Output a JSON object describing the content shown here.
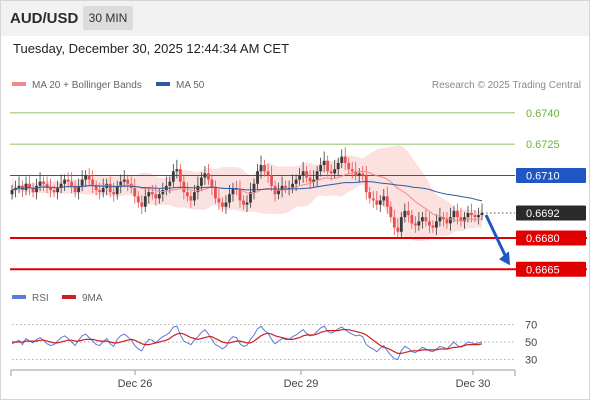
{
  "header": {
    "symbol": "AUD/USD",
    "timeframe": "30 MIN",
    "datetime": "Tuesday, December 30, 2025 12:44:34 AM CET"
  },
  "legend": {
    "ma20": "MA 20 + Bollinger Bands",
    "ma50": "MA 50",
    "credit": "Research © 2025 Trading Central"
  },
  "rsi_legend": {
    "rsi": "RSI",
    "ma": "9MA"
  },
  "colors": {
    "ma20": "#f08a8a",
    "bollinger_fill": "#fcdcdc",
    "ma50": "#2c5aa0",
    "pivot": "#1f56c4",
    "support": "#e00000",
    "resistance": "#6fae3c",
    "candle_up": "#3a3a3a",
    "candle_down": "#e85050",
    "rsi": "#5b7bd5",
    "rsi_ma": "#cc1f1f",
    "current_price_bg": "#2a2a2a",
    "arrow": "#1f56c4"
  },
  "chart_data": [
    {
      "type": "candlestick",
      "title": "",
      "x_tick_labels": [
        "Dec 26",
        "Dec 29",
        "Dec 30"
      ],
      "ylim": [
        0.6657,
        0.675
      ],
      "series": [
        {
          "name": "MA 20 + Bollinger Bands",
          "kind": "line"
        },
        {
          "name": "MA 50",
          "kind": "line"
        }
      ],
      "price_levels": [
        {
          "value": 0.674,
          "label": "0.6740",
          "role": "resistance"
        },
        {
          "value": 0.6725,
          "label": "0.6725",
          "role": "resistance"
        },
        {
          "value": 0.671,
          "label": "0.6710",
          "role": "pivot"
        },
        {
          "value": 0.6692,
          "label": "0.6692",
          "role": "current"
        },
        {
          "value": 0.668,
          "label": "0.6680",
          "role": "support"
        },
        {
          "value": 0.6665,
          "label": "0.6665",
          "role": "support"
        }
      ],
      "closes": [
        0.6703,
        0.6704,
        0.6705,
        0.6703,
        0.6706,
        0.6704,
        0.6702,
        0.6705,
        0.6707,
        0.6706,
        0.6704,
        0.6703,
        0.6702,
        0.6704,
        0.6706,
        0.6708,
        0.6707,
        0.6705,
        0.6702,
        0.6705,
        0.6708,
        0.671,
        0.6708,
        0.6705,
        0.6703,
        0.6702,
        0.6704,
        0.6706,
        0.6702,
        0.6701,
        0.6705,
        0.6707,
        0.6708,
        0.6706,
        0.6704,
        0.67,
        0.6697,
        0.6695,
        0.67,
        0.6702,
        0.6701,
        0.6699,
        0.6701,
        0.6703,
        0.6705,
        0.6707,
        0.6712,
        0.6713,
        0.6707,
        0.6702,
        0.67,
        0.6698,
        0.6702,
        0.6705,
        0.6709,
        0.6711,
        0.6708,
        0.6704,
        0.6699,
        0.6697,
        0.6695,
        0.6697,
        0.6701,
        0.6704,
        0.6703,
        0.6698,
        0.6696,
        0.6697,
        0.6702,
        0.6706,
        0.6712,
        0.6715,
        0.6712,
        0.671,
        0.6705,
        0.6701,
        0.6703,
        0.6705,
        0.6704,
        0.6704,
        0.6706,
        0.6708,
        0.671,
        0.6712,
        0.6709,
        0.6707,
        0.6708,
        0.6712,
        0.6715,
        0.6717,
        0.6712,
        0.6711,
        0.6713,
        0.6716,
        0.6719,
        0.6716,
        0.6713,
        0.6712,
        0.671,
        0.6711,
        0.671,
        0.6702,
        0.6699,
        0.6698,
        0.6696,
        0.6698,
        0.67,
        0.6695,
        0.669,
        0.6685,
        0.6683,
        0.669,
        0.6693,
        0.6691,
        0.6687,
        0.6686,
        0.6688,
        0.669,
        0.6688,
        0.6686,
        0.6685,
        0.6688,
        0.669,
        0.6689,
        0.6687,
        0.669,
        0.6693,
        0.669,
        0.6688,
        0.669,
        0.6692,
        0.6691,
        0.669,
        0.6691,
        0.6692
      ],
      "rsi_ticks": [
        70,
        50,
        30
      ],
      "rsi": [
        48,
        50,
        52,
        47,
        54,
        51,
        49,
        53,
        55,
        52,
        48,
        46,
        47,
        51,
        55,
        57,
        54,
        50,
        46,
        52,
        57,
        59,
        55,
        51,
        47,
        46,
        50,
        54,
        48,
        45,
        53,
        57,
        59,
        56,
        52,
        46,
        42,
        40,
        48,
        53,
        52,
        49,
        53,
        56,
        58,
        61,
        67,
        68,
        58,
        51,
        49,
        47,
        52,
        56,
        61,
        64,
        59,
        53,
        47,
        45,
        42,
        45,
        52,
        56,
        55,
        48,
        45,
        46,
        53,
        58,
        65,
        68,
        63,
        60,
        53,
        48,
        51,
        54,
        53,
        53,
        56,
        58,
        61,
        64,
        60,
        57,
        58,
        62,
        66,
        68,
        62,
        60,
        62,
        65,
        67,
        64,
        61,
        59,
        57,
        58,
        56,
        47,
        44,
        42,
        39,
        43,
        46,
        40,
        35,
        31,
        30,
        40,
        45,
        43,
        39,
        38,
        41,
        44,
        42,
        40,
        39,
        42,
        45,
        44,
        42,
        46,
        50,
        46,
        44,
        47,
        50,
        49,
        48,
        49,
        50
      ],
      "rsi_ma": [
        50,
        50,
        50,
        50,
        51,
        51,
        51,
        51,
        52,
        52,
        51,
        50,
        49,
        49,
        50,
        51,
        52,
        52,
        51,
        51,
        52,
        53,
        53,
        53,
        52,
        51,
        51,
        51,
        50,
        49,
        49,
        50,
        51,
        52,
        53,
        52,
        50,
        48,
        47,
        47,
        48,
        49,
        50,
        51,
        52,
        54,
        57,
        59,
        60,
        59,
        57,
        55,
        54,
        53,
        54,
        55,
        56,
        56,
        54,
        52,
        50,
        49,
        49,
        50,
        51,
        51,
        50,
        49,
        49,
        51,
        54,
        57,
        59,
        60,
        59,
        57,
        56,
        55,
        54,
        53,
        53,
        54,
        55,
        57,
        58,
        58,
        58,
        59,
        61,
        62,
        63,
        63,
        63,
        63,
        64,
        64,
        64,
        63,
        62,
        61,
        60,
        58,
        55,
        52,
        49,
        46,
        44,
        43,
        41,
        39,
        37,
        37,
        38,
        39,
        40,
        40,
        40,
        41,
        41,
        41,
        41,
        41,
        42,
        42,
        42,
        43,
        44,
        44,
        45,
        46,
        47,
        47,
        47,
        47,
        48
      ]
    }
  ]
}
